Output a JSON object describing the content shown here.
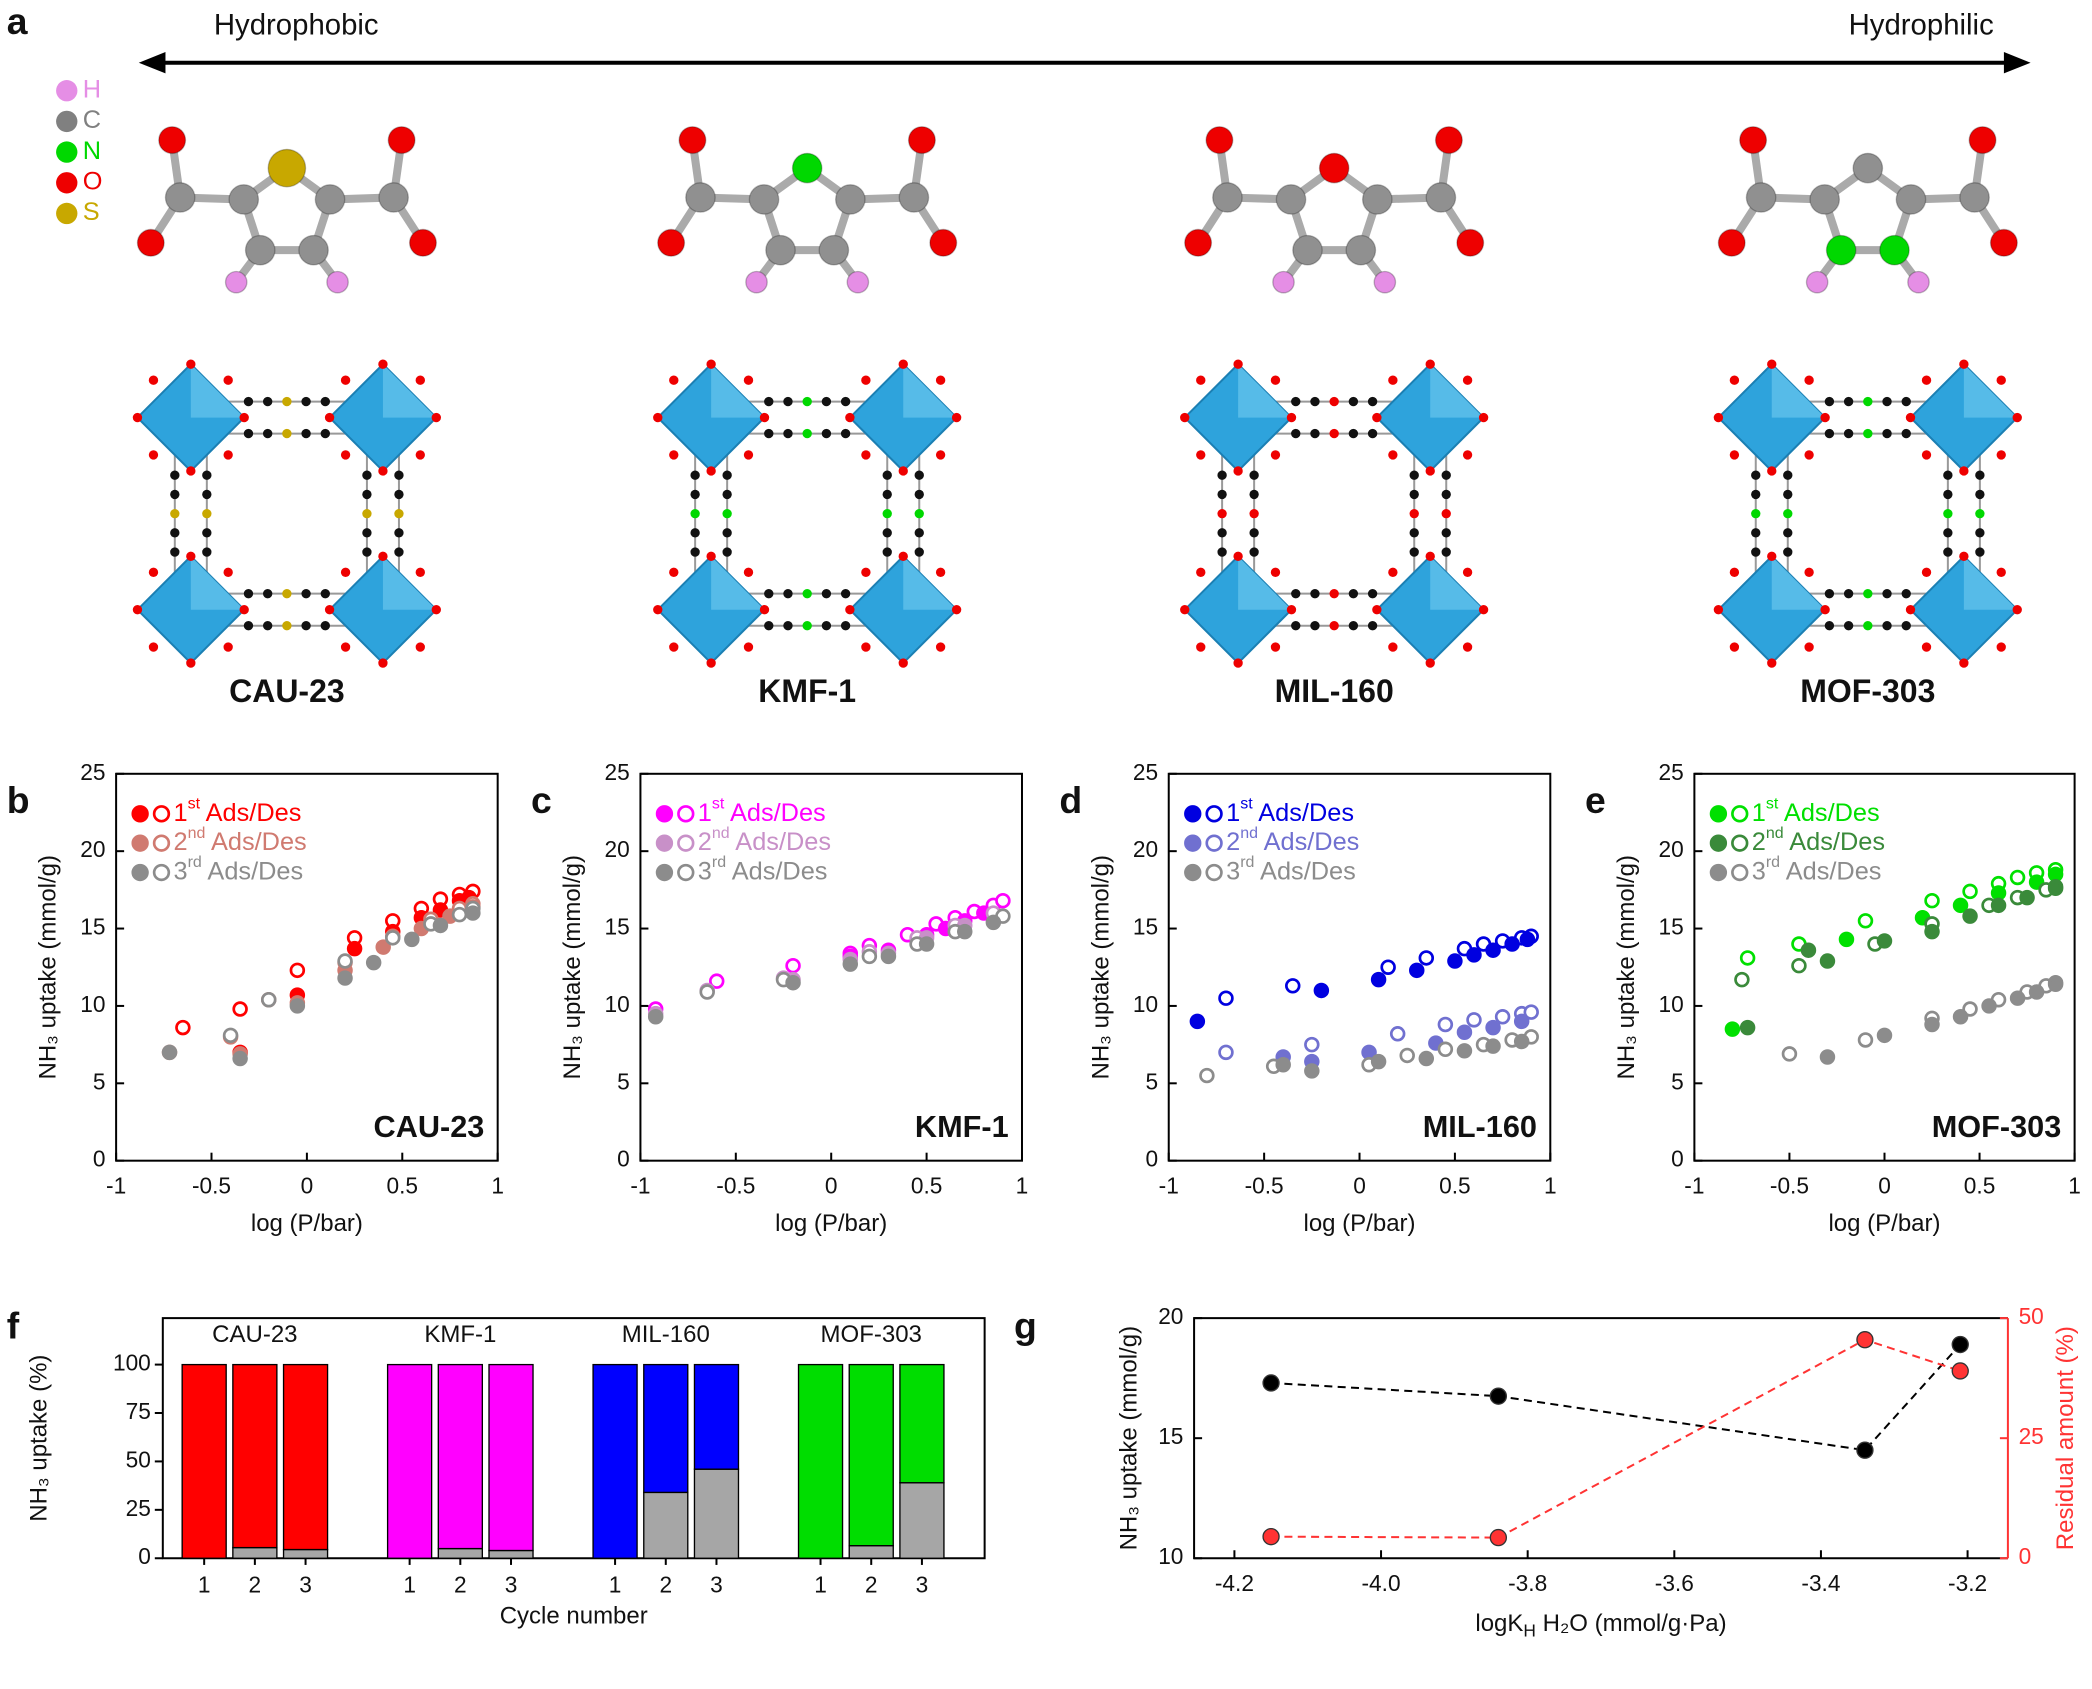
{
  "panel_a": {
    "letter": "a",
    "left_label": "Hydrophobic",
    "right_label": "Hydrophilic",
    "elements": [
      {
        "symbol": "H",
        "color": "#e58ee5"
      },
      {
        "symbol": "C",
        "color": "#808080"
      },
      {
        "symbol": "N",
        "color": "#00d800"
      },
      {
        "symbol": "O",
        "color": "#ee0000"
      },
      {
        "symbol": "S",
        "color": "#c8a800"
      }
    ],
    "materials": [
      "CAU-23",
      "KMF-1",
      "MIL-160",
      "MOF-303"
    ]
  },
  "chart_data": [
    {
      "type": "scatter",
      "panel": "b",
      "annotation": "CAU-23",
      "xlabel": "log (P/bar)",
      "ylabel": "NH₃ uptake (mmol/g)",
      "xlim": [
        -1,
        1
      ],
      "ylim": [
        0,
        25
      ],
      "xticks": [
        -1,
        -0.5,
        0,
        0.5,
        1
      ],
      "yticks": [
        0,
        5,
        10,
        15,
        20,
        25
      ],
      "series": [
        {
          "name": "1st Ads/Des",
          "color": "#ff0000",
          "adsorption": {
            "x": [
              -0.35,
              -0.05,
              0.25,
              0.45,
              0.6,
              0.7,
              0.8,
              0.85
            ],
            "values": [
              7,
              10.7,
              13.7,
              14.8,
              15.7,
              16.2,
              16.8,
              17
            ]
          },
          "desorption": {
            "x": [
              -0.65,
              -0.35,
              -0.05,
              0.25,
              0.45,
              0.6,
              0.7,
              0.8,
              0.87
            ],
            "values": [
              8.6,
              9.8,
              12.3,
              14.4,
              15.5,
              16.3,
              16.9,
              17.2,
              17.4
            ]
          }
        },
        {
          "name": "2nd Ads/Des",
          "color": "#d07a70",
          "adsorption": {
            "x": [
              -0.72,
              -0.35,
              -0.05,
              0.2,
              0.4,
              0.6,
              0.75,
              0.87
            ],
            "values": [
              7,
              6.9,
              10.2,
              12.3,
              13.8,
              15,
              15.8,
              16.4
            ]
          },
          "desorption": {
            "x": [
              -0.4,
              -0.2,
              0.2,
              0.45,
              0.65,
              0.8,
              0.87
            ],
            "values": [
              8,
              10.4,
              12.8,
              14.5,
              15.6,
              16.3,
              16.6
            ]
          }
        },
        {
          "name": "3rd Ads/Des",
          "color": "#8c8c8c",
          "adsorption": {
            "x": [
              -0.72,
              -0.35,
              -0.05,
              0.2,
              0.35,
              0.55,
              0.7,
              0.87
            ],
            "values": [
              7,
              6.6,
              10,
              11.8,
              12.8,
              14.3,
              15.2,
              16
            ]
          },
          "desorption": {
            "x": [
              -0.4,
              -0.2,
              0.2,
              0.45,
              0.65,
              0.8,
              0.87
            ],
            "values": [
              8.1,
              10.4,
              12.9,
              14.4,
              15.3,
              15.9,
              16.3
            ]
          }
        }
      ]
    },
    {
      "type": "scatter",
      "panel": "c",
      "annotation": "KMF-1",
      "xlabel": "log (P/bar)",
      "ylabel": "NH₃ uptake (mmol/g)",
      "xlim": [
        -1,
        1
      ],
      "ylim": [
        0,
        25
      ],
      "xticks": [
        -1,
        -0.5,
        0,
        0.5,
        1
      ],
      "yticks": [
        0,
        5,
        10,
        15,
        20,
        25
      ],
      "series": [
        {
          "name": "1st Ads/Des",
          "color": "#ff00ff",
          "adsorption": {
            "x": [
              0.1,
              0.3,
              0.5,
              0.6,
              0.7,
              0.8
            ],
            "values": [
              13.2,
              13.6,
              14.6,
              15,
              15.5,
              16
            ]
          },
          "desorption": {
            "x": [
              -0.92,
              -0.6,
              -0.2,
              0.1,
              0.2,
              0.4,
              0.55,
              0.65,
              0.75,
              0.85,
              0.9
            ],
            "values": [
              9.8,
              11.6,
              12.6,
              13.4,
              13.9,
              14.6,
              15.3,
              15.7,
              16.1,
              16.5,
              16.8
            ]
          }
        },
        {
          "name": "2nd Ads/Des",
          "color": "#c890c8",
          "adsorption": {
            "x": [
              -0.92,
              -0.2,
              0.1,
              0.3,
              0.5,
              0.7
            ],
            "values": [
              9.5,
              11.7,
              13,
              13.4,
              14.4,
              15.2
            ]
          },
          "desorption": {
            "x": [
              -0.65,
              -0.25,
              0.2,
              0.45,
              0.65,
              0.85
            ],
            "values": [
              11,
              11.8,
              13.5,
              14.4,
              15.2,
              16
            ]
          }
        },
        {
          "name": "3rd Ads/Des",
          "color": "#8c8c8c",
          "adsorption": {
            "x": [
              -0.92,
              -0.2,
              0.1,
              0.3,
              0.5,
              0.7,
              0.85
            ],
            "values": [
              9.3,
              11.5,
              12.7,
              13.2,
              14,
              14.8,
              15.4
            ]
          },
          "desorption": {
            "x": [
              -0.65,
              -0.25,
              0.2,
              0.45,
              0.65,
              0.9
            ],
            "values": [
              10.9,
              11.7,
              13.2,
              14,
              14.8,
              15.8
            ]
          }
        }
      ]
    },
    {
      "type": "scatter",
      "panel": "d",
      "annotation": "MIL-160",
      "xlabel": "log (P/bar)",
      "ylabel": "NH₃ uptake (mmol/g)",
      "xlim": [
        -1,
        1
      ],
      "ylim": [
        0,
        25
      ],
      "xticks": [
        -1,
        -0.5,
        0,
        0.5,
        1
      ],
      "yticks": [
        0,
        5,
        10,
        15,
        20,
        25
      ],
      "series": [
        {
          "name": "1st Ads/Des",
          "color": "#0000e0",
          "adsorption": {
            "x": [
              -0.85,
              -0.2,
              0.1,
              0.3,
              0.5,
              0.6,
              0.7,
              0.8,
              0.88
            ],
            "values": [
              9,
              11,
              11.7,
              12.3,
              12.9,
              13.3,
              13.6,
              14,
              14.3
            ]
          },
          "desorption": {
            "x": [
              -0.7,
              -0.35,
              0.15,
              0.35,
              0.55,
              0.65,
              0.75,
              0.85,
              0.9
            ],
            "values": [
              10.5,
              11.3,
              12.5,
              13.1,
              13.7,
              14,
              14.2,
              14.4,
              14.5
            ]
          }
        },
        {
          "name": "2nd Ads/Des",
          "color": "#7070d0",
          "adsorption": {
            "x": [
              -0.4,
              -0.25,
              0.05,
              0.4,
              0.55,
              0.7,
              0.85
            ],
            "values": [
              6.7,
              6.4,
              7,
              7.6,
              8.3,
              8.6,
              9
            ]
          },
          "desorption": {
            "x": [
              -0.7,
              -0.25,
              0.2,
              0.45,
              0.6,
              0.75,
              0.85,
              0.9
            ],
            "values": [
              7,
              7.5,
              8.2,
              8.8,
              9.1,
              9.3,
              9.5,
              9.6
            ]
          }
        },
        {
          "name": "3rd Ads/Des",
          "color": "#8c8c8c",
          "adsorption": {
            "x": [
              -0.4,
              -0.25,
              0.1,
              0.35,
              0.55,
              0.7,
              0.85
            ],
            "values": [
              6.2,
              5.8,
              6.4,
              6.6,
              7.1,
              7.4,
              7.7
            ]
          },
          "desorption": {
            "x": [
              -0.8,
              -0.45,
              0.05,
              0.25,
              0.45,
              0.65,
              0.8,
              0.9
            ],
            "values": [
              5.5,
              6.1,
              6.2,
              6.8,
              7.2,
              7.5,
              7.8,
              8
            ]
          }
        }
      ]
    },
    {
      "type": "scatter",
      "panel": "e",
      "annotation": "MOF-303",
      "xlabel": "log (P/bar)",
      "ylabel": "NH₃ uptake (mmol/g)",
      "xlim": [
        -1,
        1
      ],
      "ylim": [
        0,
        25
      ],
      "xticks": [
        -1,
        -0.5,
        0,
        0.5,
        1
      ],
      "yticks": [
        0,
        5,
        10,
        15,
        20,
        25
      ],
      "series": [
        {
          "name": "1st Ads/Des",
          "color": "#00e000",
          "adsorption": {
            "x": [
              -0.8,
              -0.2,
              0.2,
              0.4,
              0.6,
              0.8,
              0.9
            ],
            "values": [
              8.5,
              14.3,
              15.7,
              16.5,
              17.3,
              18,
              18.5
            ]
          },
          "desorption": {
            "x": [
              -0.72,
              -0.45,
              -0.1,
              0.25,
              0.45,
              0.6,
              0.7,
              0.8,
              0.9
            ],
            "values": [
              13.1,
              14,
              15.5,
              16.8,
              17.4,
              17.9,
              18.3,
              18.6,
              18.8
            ]
          }
        },
        {
          "name": "2nd Ads/Des",
          "color": "#3a8a3a",
          "adsorption": {
            "x": [
              -0.72,
              -0.4,
              -0.3,
              0,
              0.25,
              0.45,
              0.6,
              0.75,
              0.9
            ],
            "values": [
              8.6,
              13.6,
              12.9,
              14.2,
              14.8,
              15.8,
              16.5,
              17,
              17.6
            ]
          },
          "desorption": {
            "x": [
              -0.75,
              -0.45,
              -0.05,
              0.25,
              0.55,
              0.7,
              0.85,
              0.9
            ],
            "values": [
              11.7,
              12.6,
              14,
              15.3,
              16.5,
              17,
              17.5,
              17.7
            ]
          }
        },
        {
          "name": "3rd Ads/Des",
          "color": "#8c8c8c",
          "adsorption": {
            "x": [
              -0.3,
              0,
              0.25,
              0.4,
              0.55,
              0.7,
              0.8,
              0.9
            ],
            "values": [
              6.7,
              8.1,
              8.8,
              9.3,
              10,
              10.5,
              10.9,
              11.4
            ]
          },
          "desorption": {
            "x": [
              -0.5,
              -0.1,
              0.25,
              0.45,
              0.6,
              0.75,
              0.85,
              0.9
            ],
            "values": [
              6.9,
              7.8,
              9.2,
              9.8,
              10.4,
              10.9,
              11.3,
              11.5
            ]
          }
        }
      ]
    },
    {
      "type": "bar",
      "panel": "f",
      "xlabel": "Cycle number",
      "ylabel": "NH₃ uptake (%)",
      "stacked": true,
      "ylim": [
        0,
        124
      ],
      "yticks": [
        0,
        25,
        50,
        75,
        100
      ],
      "residual_color": "#a6a6a6",
      "groups": [
        {
          "label": "CAU-23",
          "color": "#ff0000",
          "categories": [
            "1",
            "2",
            "3"
          ],
          "residual": [
            0,
            5.5,
            4.5
          ],
          "uptake": [
            100,
            94.5,
            95.5
          ]
        },
        {
          "label": "KMF-1",
          "color": "#ff00ff",
          "categories": [
            "1",
            "2",
            "3"
          ],
          "residual": [
            0,
            5,
            4
          ],
          "uptake": [
            100,
            95,
            96
          ]
        },
        {
          "label": "MIL-160",
          "color": "#0000ff",
          "categories": [
            "1",
            "2",
            "3"
          ],
          "residual": [
            0,
            34,
            46
          ],
          "uptake": [
            100,
            66,
            54
          ]
        },
        {
          "label": "MOF-303",
          "color": "#00dd00",
          "categories": [
            "1",
            "2",
            "3"
          ],
          "residual": [
            0,
            6.5,
            39
          ],
          "uptake": [
            100,
            93.5,
            61
          ]
        }
      ]
    },
    {
      "type": "line",
      "panel": "g",
      "xlabel": [
        {
          "text": "logK"
        },
        {
          "text": "H",
          "sub": true
        },
        {
          "text": " H₂O (mmol/g·Pa)"
        }
      ],
      "ylabel": "NH₃ uptake (mmol/g)",
      "y2label": "Residual amount (%)",
      "x": [
        -4.15,
        -3.84,
        -3.34,
        -3.21
      ],
      "xlim": [
        -4.255,
        -3.145
      ],
      "xticks": [
        -4.2,
        {
          "value": -4,
          "label": "-4.0"
        },
        -3.8,
        -3.6,
        -3.4,
        -3.2
      ],
      "ylim": [
        10,
        20
      ],
      "yticks": [
        10,
        15,
        20
      ],
      "y2lim": [
        0,
        50
      ],
      "y2ticks": [
        0,
        25,
        50
      ],
      "series": [
        {
          "color": "#000000",
          "values": [
            17.3,
            16.75,
            14.5,
            18.9
          ]
        },
        {
          "color": "#ff3333",
          "axis": "y2",
          "values": [
            4.5,
            4.3,
            45.5,
            39
          ]
        }
      ]
    }
  ]
}
